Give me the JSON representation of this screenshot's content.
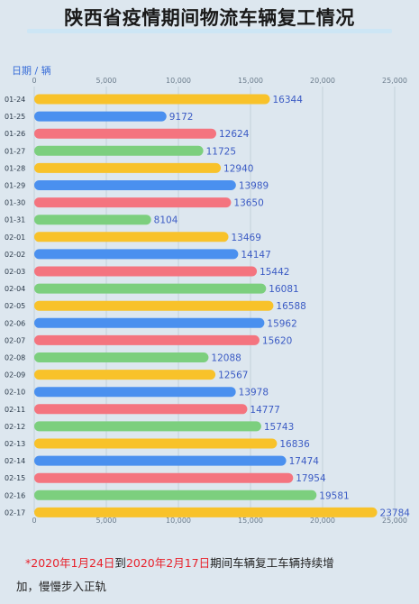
{
  "title": "陕西省疫情期间物流车辆复工情况",
  "chart_data": {
    "type": "bar",
    "orientation": "horizontal",
    "axis_caption": "日期 / 辆",
    "categories": [
      "01-24",
      "01-25",
      "01-26",
      "01-27",
      "01-28",
      "01-29",
      "01-30",
      "01-31",
      "02-01",
      "02-02",
      "02-03",
      "02-04",
      "02-05",
      "02-06",
      "02-07",
      "02-08",
      "02-09",
      "02-10",
      "02-11",
      "02-12",
      "02-13",
      "02-14",
      "02-15",
      "02-16",
      "02-17"
    ],
    "values": [
      16344,
      9172,
      12624,
      11725,
      12940,
      13989,
      13650,
      8104,
      13469,
      14147,
      15442,
      16081,
      16588,
      15962,
      15620,
      12088,
      12567,
      13978,
      14777,
      15743,
      16836,
      17474,
      17954,
      19581,
      23784
    ],
    "xlim": [
      0,
      25000
    ],
    "xticks": [
      0,
      5000,
      10000,
      15000,
      20000,
      25000
    ],
    "xtick_labels": [
      "0",
      "5,000",
      "10,000",
      "15,000",
      "20,000",
      "25,000"
    ],
    "bar_color_cycle": [
      "#f8c22a",
      "#4a90ef",
      "#f4747f",
      "#7ccf7e"
    ],
    "label_color": "#3b5bc4",
    "grid": true,
    "x_axis_position": "top-and-bottom"
  },
  "note": {
    "star": "*",
    "date_start": "2020年1月24日",
    "connector": "到",
    "date_end": "2020年2月17日",
    "text_line1": "期间车辆复工车辆持续增",
    "text_line2": "加，慢慢步入正轨"
  }
}
